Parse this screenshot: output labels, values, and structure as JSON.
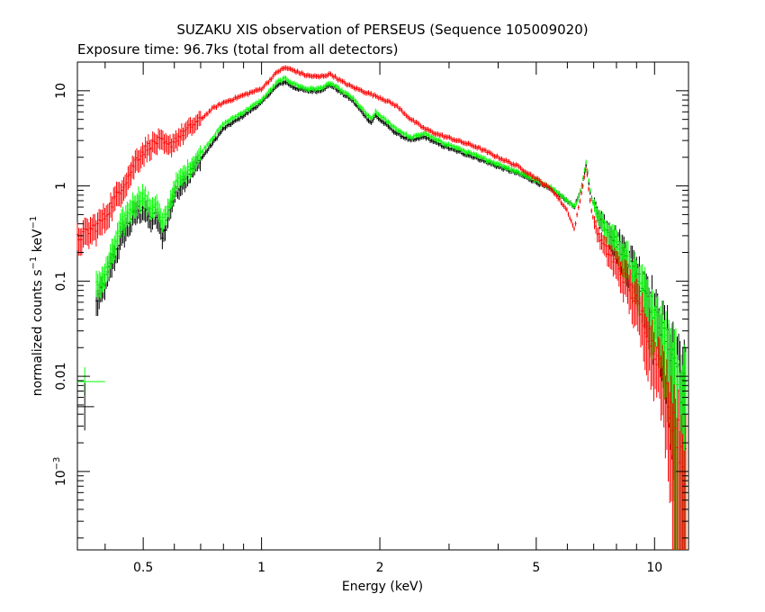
{
  "chart_data": {
    "type": "scatter",
    "title": "SUZAKU XIS observation of PERSEUS (Sequence 105009020)",
    "subtitle": "Exposure time: 96.7ks (total from all detectors)",
    "xlabel": "Energy (keV)",
    "ylabel": {
      "base": "normalized counts s",
      "exp1": "−1",
      "mid": " keV",
      "exp2": "−1"
    },
    "x_scale": "log",
    "y_scale": "log",
    "xlim": [
      0.34,
      12.2
    ],
    "ylim": [
      0.00015,
      20
    ],
    "x_ticks": [
      {
        "value": 0.5,
        "label": "0.5"
      },
      {
        "value": 1,
        "label": "1"
      },
      {
        "value": 2,
        "label": "2"
      },
      {
        "value": 5,
        "label": "5"
      },
      {
        "value": 10,
        "label": "10"
      }
    ],
    "y_ticks": [
      {
        "value": 10,
        "label": "10"
      },
      {
        "value": 1,
        "label": "1"
      },
      {
        "value": 0.1,
        "label": "0.1"
      },
      {
        "value": 0.01,
        "label": "0.01"
      },
      {
        "value": 0.001,
        "label": "10",
        "sup": "−3"
      }
    ],
    "grid": false,
    "legend": "none",
    "series": [
      {
        "color": "#ff0000",
        "points": [
          [
            0.34,
            0.28
          ],
          [
            0.36,
            0.33
          ],
          [
            0.38,
            0.38
          ],
          [
            0.4,
            0.48
          ],
          [
            0.42,
            0.7
          ],
          [
            0.44,
            0.95
          ],
          [
            0.46,
            1.3
          ],
          [
            0.48,
            1.9
          ],
          [
            0.5,
            2.3
          ],
          [
            0.52,
            2.7
          ],
          [
            0.55,
            3.0
          ],
          [
            0.58,
            2.6
          ],
          [
            0.6,
            3.0
          ],
          [
            0.65,
            4.0
          ],
          [
            0.7,
            5.0
          ],
          [
            0.75,
            6.5
          ],
          [
            0.8,
            7.5
          ],
          [
            0.9,
            9.0
          ],
          [
            1.0,
            10.5
          ],
          [
            1.05,
            13.0
          ],
          [
            1.1,
            16.0
          ],
          [
            1.15,
            17.5
          ],
          [
            1.2,
            16.5
          ],
          [
            1.3,
            14.5
          ],
          [
            1.4,
            14.0
          ],
          [
            1.5,
            15.0
          ],
          [
            1.6,
            12.5
          ],
          [
            1.7,
            11.0
          ],
          [
            1.8,
            10.0
          ],
          [
            2.0,
            8.5
          ],
          [
            2.2,
            7.0
          ],
          [
            2.4,
            5.0
          ],
          [
            2.6,
            4.0
          ],
          [
            2.8,
            3.5
          ],
          [
            3.0,
            3.2
          ],
          [
            3.5,
            2.6
          ],
          [
            4.0,
            2.0
          ],
          [
            4.5,
            1.6
          ],
          [
            5.0,
            1.2
          ],
          [
            5.5,
            0.9
          ],
          [
            6.0,
            0.55
          ],
          [
            6.25,
            0.35
          ],
          [
            6.5,
            0.8
          ],
          [
            6.7,
            1.6
          ],
          [
            6.9,
            0.55
          ],
          [
            7.2,
            0.3
          ],
          [
            7.5,
            0.22
          ],
          [
            8.0,
            0.15
          ],
          [
            8.5,
            0.1
          ],
          [
            9.0,
            0.06
          ],
          [
            9.5,
            0.035
          ],
          [
            10.0,
            0.02
          ],
          [
            10.5,
            0.01
          ],
          [
            11.0,
            0.005
          ],
          [
            11.5,
            0.0025
          ],
          [
            12.0,
            0.0012
          ]
        ]
      },
      {
        "color": "#00ff00",
        "points": [
          [
            0.38,
            0.09
          ],
          [
            0.4,
            0.12
          ],
          [
            0.42,
            0.22
          ],
          [
            0.44,
            0.4
          ],
          [
            0.46,
            0.55
          ],
          [
            0.48,
            0.7
          ],
          [
            0.5,
            0.8
          ],
          [
            0.52,
            0.6
          ],
          [
            0.54,
            0.65
          ],
          [
            0.56,
            0.4
          ],
          [
            0.58,
            0.6
          ],
          [
            0.6,
            1.0
          ],
          [
            0.65,
            1.5
          ],
          [
            0.7,
            2.2
          ],
          [
            0.75,
            3.2
          ],
          [
            0.8,
            4.5
          ],
          [
            0.9,
            6.0
          ],
          [
            1.0,
            8.0
          ],
          [
            1.05,
            10.0
          ],
          [
            1.1,
            12.5
          ],
          [
            1.15,
            13.5
          ],
          [
            1.2,
            12.0
          ],
          [
            1.3,
            10.5
          ],
          [
            1.4,
            10.5
          ],
          [
            1.5,
            12.0
          ],
          [
            1.6,
            10.0
          ],
          [
            1.7,
            8.5
          ],
          [
            1.8,
            6.5
          ],
          [
            1.9,
            5.0
          ],
          [
            1.95,
            6.0
          ],
          [
            2.0,
            5.5
          ],
          [
            2.2,
            4.0
          ],
          [
            2.4,
            3.2
          ],
          [
            2.6,
            3.6
          ],
          [
            2.8,
            3.0
          ],
          [
            3.0,
            2.7
          ],
          [
            3.5,
            2.1
          ],
          [
            4.0,
            1.7
          ],
          [
            4.5,
            1.4
          ],
          [
            5.0,
            1.15
          ],
          [
            5.5,
            0.95
          ],
          [
            6.0,
            0.7
          ],
          [
            6.25,
            0.6
          ],
          [
            6.5,
            0.9
          ],
          [
            6.7,
            1.8
          ],
          [
            6.9,
            0.75
          ],
          [
            7.2,
            0.5
          ],
          [
            7.5,
            0.38
          ],
          [
            8.0,
            0.25
          ],
          [
            8.5,
            0.17
          ],
          [
            9.0,
            0.11
          ],
          [
            9.5,
            0.07
          ],
          [
            10.0,
            0.045
          ],
          [
            10.5,
            0.028
          ],
          [
            11.0,
            0.018
          ],
          [
            11.5,
            0.01
          ],
          [
            12.0,
            0.006
          ]
        ]
      },
      {
        "color": "#000000",
        "points": [
          [
            0.38,
            0.06
          ],
          [
            0.4,
            0.1
          ],
          [
            0.42,
            0.18
          ],
          [
            0.44,
            0.3
          ],
          [
            0.46,
            0.42
          ],
          [
            0.48,
            0.55
          ],
          [
            0.5,
            0.62
          ],
          [
            0.52,
            0.45
          ],
          [
            0.54,
            0.5
          ],
          [
            0.56,
            0.3
          ],
          [
            0.58,
            0.5
          ],
          [
            0.6,
            0.85
          ],
          [
            0.65,
            1.3
          ],
          [
            0.7,
            1.9
          ],
          [
            0.75,
            2.8
          ],
          [
            0.8,
            4.0
          ],
          [
            0.9,
            5.5
          ],
          [
            1.0,
            7.5
          ],
          [
            1.05,
            9.5
          ],
          [
            1.1,
            11.5
          ],
          [
            1.15,
            12.5
          ],
          [
            1.2,
            11.0
          ],
          [
            1.3,
            10.0
          ],
          [
            1.4,
            10.0
          ],
          [
            1.5,
            11.5
          ],
          [
            1.6,
            9.5
          ],
          [
            1.7,
            8.0
          ],
          [
            1.8,
            6.0
          ],
          [
            1.9,
            4.6
          ],
          [
            1.95,
            5.5
          ],
          [
            2.0,
            5.0
          ],
          [
            2.2,
            3.6
          ],
          [
            2.4,
            3.0
          ],
          [
            2.6,
            3.3
          ],
          [
            2.8,
            2.8
          ],
          [
            3.0,
            2.5
          ],
          [
            3.5,
            2.0
          ],
          [
            4.0,
            1.6
          ],
          [
            4.5,
            1.35
          ],
          [
            5.0,
            1.1
          ],
          [
            5.5,
            0.9
          ],
          [
            6.0,
            0.7
          ],
          [
            6.25,
            0.6
          ],
          [
            6.5,
            0.9
          ],
          [
            6.7,
            1.7
          ],
          [
            6.9,
            0.75
          ],
          [
            7.2,
            0.5
          ],
          [
            7.5,
            0.38
          ],
          [
            8.0,
            0.26
          ],
          [
            8.5,
            0.18
          ],
          [
            9.0,
            0.12
          ],
          [
            9.5,
            0.08
          ],
          [
            10.0,
            0.05
          ],
          [
            10.5,
            0.03
          ],
          [
            11.0,
            0.02
          ],
          [
            11.5,
            0.012
          ],
          [
            12.0,
            0.007
          ]
        ]
      }
    ],
    "annotations": [
      {
        "color": "#00ff00",
        "x": 0.355,
        "y": 0.0088,
        "x_err": [
          0.34,
          0.4
        ],
        "y_err": [
          0.0063,
          0.0125
        ]
      },
      {
        "color": "#000000",
        "x": 0.355,
        "y": 0.0048,
        "x_err": [
          0.34,
          0.375
        ],
        "y_err": [
          0.0027,
          0.0085
        ]
      }
    ]
  }
}
